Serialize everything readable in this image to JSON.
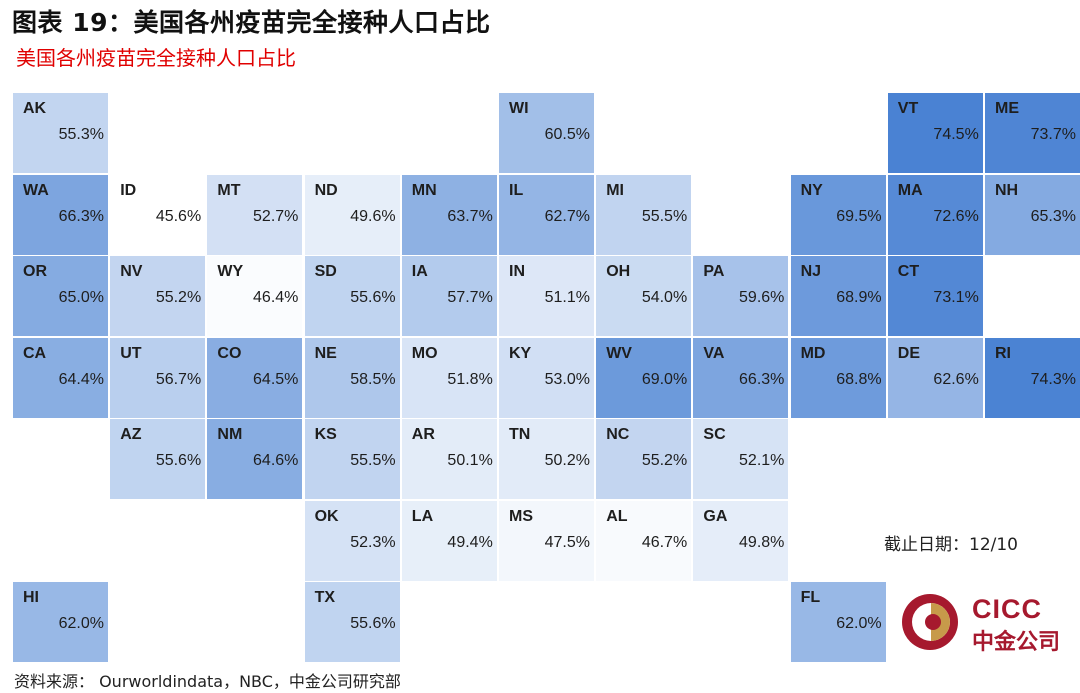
{
  "figure_title": "图表 19：美国各州疫苗完全接种人口占比",
  "subtitle": "美国各州疫苗完全接种人口占比",
  "as_of": "截止日期：12/10",
  "source": "资料来源：  Ourworldindata，NBC，中金公司研究部",
  "logo": {
    "text_en": "CICC",
    "text_cn": "中金公司",
    "mark_color": "#a6192e",
    "accent_color": "#c79a4a"
  },
  "chart_data": {
    "type": "heatmap",
    "title": "美国各州疫苗完全接种人口占比",
    "unit": "%",
    "color_scale": {
      "min_value": 45.6,
      "max_value": 74.5,
      "min_color": "#ffffff",
      "max_color": "#4a82d3"
    },
    "states": [
      {
        "abbr": "AK",
        "label": "55.3%",
        "value": 55.3,
        "row": 0,
        "col": 0
      },
      {
        "abbr": "WI",
        "label": "60.5%",
        "value": 60.5,
        "row": 0,
        "col": 5
      },
      {
        "abbr": "VT",
        "label": "74.5%",
        "value": 74.5,
        "row": 0,
        "col": 9
      },
      {
        "abbr": "ME",
        "label": "73.7%",
        "value": 73.7,
        "row": 0,
        "col": 10
      },
      {
        "abbr": "WA",
        "label": "66.3%",
        "value": 66.3,
        "row": 1,
        "col": 0
      },
      {
        "abbr": "ID",
        "label": "45.6%",
        "value": 45.6,
        "row": 1,
        "col": 1
      },
      {
        "abbr": "MT",
        "label": "52.7%",
        "value": 52.7,
        "row": 1,
        "col": 2
      },
      {
        "abbr": "ND",
        "label": "49.6%",
        "value": 49.6,
        "row": 1,
        "col": 3
      },
      {
        "abbr": "MN",
        "label": "63.7%",
        "value": 63.7,
        "row": 1,
        "col": 4
      },
      {
        "abbr": "IL",
        "label": "62.7%",
        "value": 62.7,
        "row": 1,
        "col": 5
      },
      {
        "abbr": "MI",
        "label": "55.5%",
        "value": 55.5,
        "row": 1,
        "col": 6
      },
      {
        "abbr": "NY",
        "label": "69.5%",
        "value": 69.5,
        "row": 1,
        "col": 8
      },
      {
        "abbr": "MA",
        "label": "72.6%",
        "value": 72.6,
        "row": 1,
        "col": 9
      },
      {
        "abbr": "NH",
        "label": "65.3%",
        "value": 65.3,
        "row": 1,
        "col": 10
      },
      {
        "abbr": "OR",
        "label": "65.0%",
        "value": 65.0,
        "row": 2,
        "col": 0
      },
      {
        "abbr": "NV",
        "label": "55.2%",
        "value": 55.2,
        "row": 2,
        "col": 1
      },
      {
        "abbr": "WY",
        "label": "46.4%",
        "value": 46.4,
        "row": 2,
        "col": 2
      },
      {
        "abbr": "SD",
        "label": "55.6%",
        "value": 55.6,
        "row": 2,
        "col": 3
      },
      {
        "abbr": "IA",
        "label": "57.7%",
        "value": 57.7,
        "row": 2,
        "col": 4
      },
      {
        "abbr": "IN",
        "label": "51.1%",
        "value": 51.1,
        "row": 2,
        "col": 5
      },
      {
        "abbr": "OH",
        "label": "54.0%",
        "value": 54.0,
        "row": 2,
        "col": 6
      },
      {
        "abbr": "PA",
        "label": "59.6%",
        "value": 59.6,
        "row": 2,
        "col": 7
      },
      {
        "abbr": "NJ",
        "label": "68.9%",
        "value": 68.9,
        "row": 2,
        "col": 8
      },
      {
        "abbr": "CT",
        "label": "73.1%",
        "value": 73.1,
        "row": 2,
        "col": 9
      },
      {
        "abbr": "CA",
        "label": "64.4%",
        "value": 64.4,
        "row": 3,
        "col": 0
      },
      {
        "abbr": "UT",
        "label": "56.7%",
        "value": 56.7,
        "row": 3,
        "col": 1
      },
      {
        "abbr": "CO",
        "label": "64.5%",
        "value": 64.5,
        "row": 3,
        "col": 2
      },
      {
        "abbr": "NE",
        "label": "58.5%",
        "value": 58.5,
        "row": 3,
        "col": 3
      },
      {
        "abbr": "MO",
        "label": "51.8%",
        "value": 51.8,
        "row": 3,
        "col": 4
      },
      {
        "abbr": "KY",
        "label": "53.0%",
        "value": 53.0,
        "row": 3,
        "col": 5
      },
      {
        "abbr": "WV",
        "label": "69.0%",
        "value": 69.0,
        "row": 3,
        "col": 6
      },
      {
        "abbr": "VA",
        "label": "66.3%",
        "value": 66.3,
        "row": 3,
        "col": 7
      },
      {
        "abbr": "MD",
        "label": "68.8%",
        "value": 68.8,
        "row": 3,
        "col": 8
      },
      {
        "abbr": "DE",
        "label": "62.6%",
        "value": 62.6,
        "row": 3,
        "col": 9
      },
      {
        "abbr": "RI",
        "label": "74.3%",
        "value": 74.3,
        "row": 3,
        "col": 10
      },
      {
        "abbr": "AZ",
        "label": "55.6%",
        "value": 55.6,
        "row": 4,
        "col": 1
      },
      {
        "abbr": "NM",
        "label": "64.6%",
        "value": 64.6,
        "row": 4,
        "col": 2
      },
      {
        "abbr": "KS",
        "label": "55.5%",
        "value": 55.5,
        "row": 4,
        "col": 3
      },
      {
        "abbr": "AR",
        "label": "50.1%",
        "value": 50.1,
        "row": 4,
        "col": 4
      },
      {
        "abbr": "TN",
        "label": "50.2%",
        "value": 50.2,
        "row": 4,
        "col": 5
      },
      {
        "abbr": "NC",
        "label": "55.2%",
        "value": 55.2,
        "row": 4,
        "col": 6
      },
      {
        "abbr": "SC",
        "label": "52.1%",
        "value": 52.1,
        "row": 4,
        "col": 7
      },
      {
        "abbr": "OK",
        "label": "52.3%",
        "value": 52.3,
        "row": 5,
        "col": 3
      },
      {
        "abbr": "LA",
        "label": "49.4%",
        "value": 49.4,
        "row": 5,
        "col": 4
      },
      {
        "abbr": "MS",
        "label": "47.5%",
        "value": 47.5,
        "row": 5,
        "col": 5
      },
      {
        "abbr": "AL",
        "label": "46.7%",
        "value": 46.7,
        "row": 5,
        "col": 6
      },
      {
        "abbr": "GA",
        "label": "49.8%",
        "value": 49.8,
        "row": 5,
        "col": 7
      },
      {
        "abbr": "HI",
        "label": "62.0%",
        "value": 62.0,
        "row": 6,
        "col": 0
      },
      {
        "abbr": "TX",
        "label": "55.6%",
        "value": 55.6,
        "row": 6,
        "col": 3
      },
      {
        "abbr": "FL",
        "label": "62.0%",
        "value": 62.0,
        "row": 6,
        "col": 8
      }
    ]
  }
}
